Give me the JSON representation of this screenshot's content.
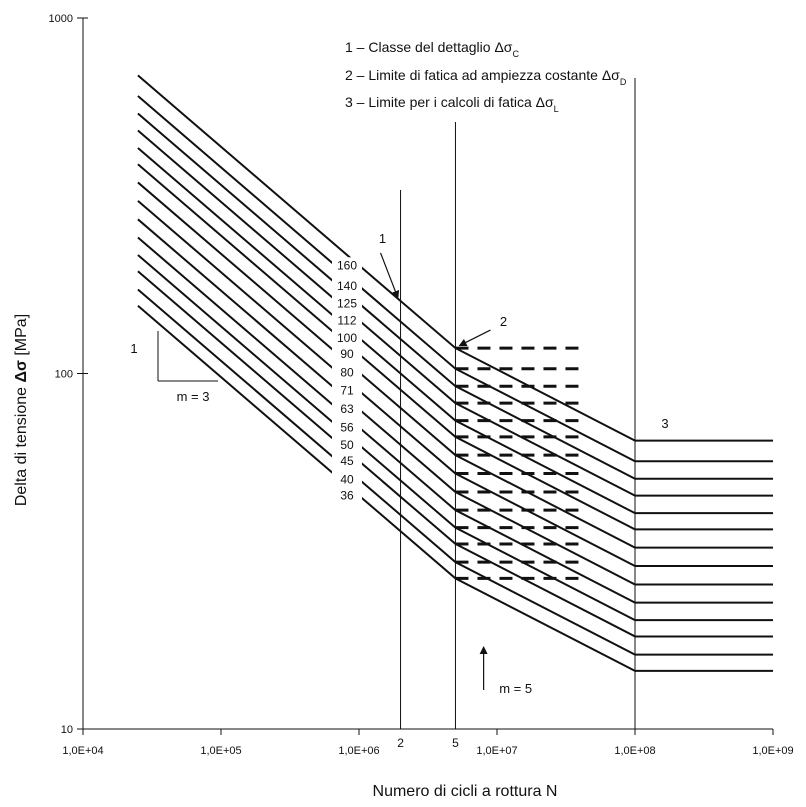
{
  "chart_data": {
    "type": "line",
    "x_scale": "log",
    "y_scale": "log",
    "xlim": [
      10000,
      1000000000
    ],
    "ylim": [
      10,
      1000
    ],
    "xlabel": "Numero di cicli a rottura N",
    "ylabel_prefix": "Delta di tensione ",
    "ylabel_symbol": "Δσ",
    "ylabel_suffix": " [MPa]",
    "x_ticks": [
      {
        "value": 10000,
        "label": "1,0E+04"
      },
      {
        "value": 100000,
        "label": "1,0E+05"
      },
      {
        "value": 1000000,
        "label": "1,0E+06"
      },
      {
        "value": 10000000,
        "label": "1,0E+07"
      },
      {
        "value": 100000000,
        "label": "1,0E+08"
      },
      {
        "value": 1000000000,
        "label": "1,0E+09"
      }
    ],
    "y_ticks": [
      {
        "value": 10,
        "label": "10"
      },
      {
        "value": 100,
        "label": "100"
      },
      {
        "value": 1000,
        "label": "1000"
      }
    ],
    "legend": [
      {
        "prefix": "1 – Classe del dettaglio ",
        "symbol": "Δσ",
        "sub": "C"
      },
      {
        "prefix": "2 – Limite di fatica ad ampiezza costante ",
        "symbol": "Δσ",
        "sub": "D"
      },
      {
        "prefix": "3 – Limite per i calcoli di fatica ",
        "symbol": "Δσ",
        "sub": "L"
      }
    ],
    "detail_categories": [
      160,
      140,
      125,
      112,
      100,
      90,
      80,
      71,
      63,
      56,
      50,
      45,
      40,
      36
    ],
    "curve_start_N": 25000,
    "reference_N": 2000000,
    "knee_D_N": 5000000,
    "cutoff_L_N": 100000000,
    "end_N": 1000000000,
    "slope_m1": 3,
    "slope_m2": 5,
    "dash_extension_end_N": 40000000,
    "vertical_markers": [
      {
        "N": 2000000,
        "label": "2",
        "y_top": 190
      },
      {
        "N": 5000000,
        "label": "5",
        "y_top": 122
      },
      {
        "N": 100000000,
        "label": "",
        "y_top": 78
      }
    ],
    "callouts": {
      "c1": "1",
      "c2": "2",
      "c3": "3",
      "slope1_label": "1",
      "slope1_text": "m = 3",
      "slope2_text": "m = 5"
    }
  }
}
